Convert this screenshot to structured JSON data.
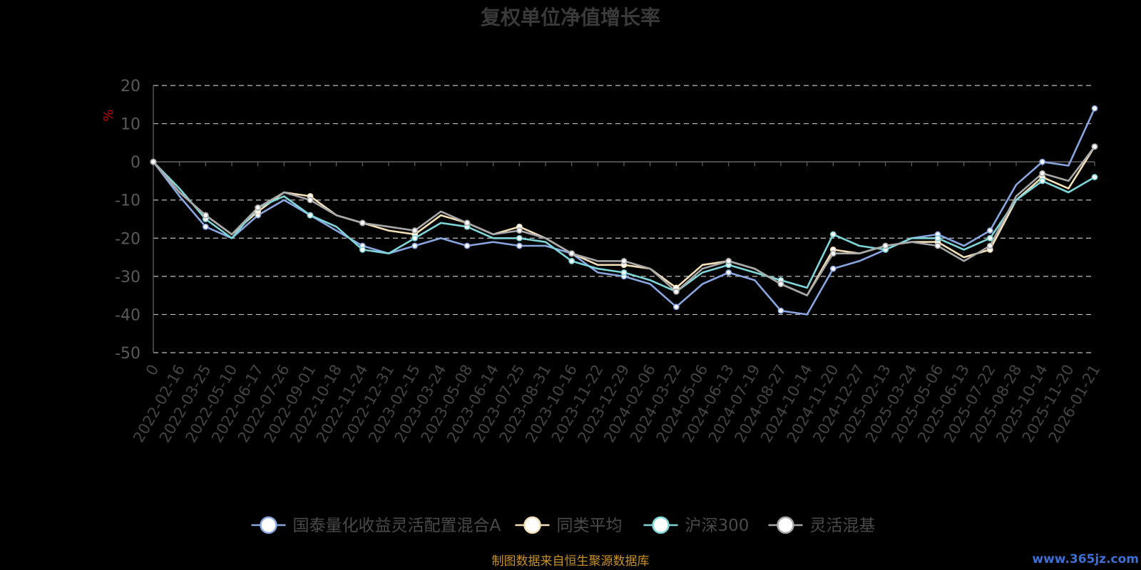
{
  "chart_data": {
    "type": "line",
    "title": "复权单位净值增长率",
    "ylabel": "%",
    "ylim": [
      -50,
      20
    ],
    "yticks": [
      20,
      10,
      0,
      -10,
      -20,
      -30,
      -40,
      -50
    ],
    "grid": true,
    "legend_position": "bottom-center",
    "x_tick_labels": [
      "0",
      "2022-02-16",
      "2022-03-25",
      "2022-05-10",
      "2022-06-17",
      "2022-07-26",
      "2022-09-01",
      "2022-10-18",
      "2022-11-24",
      "2022-12-31",
      "2023-02-15",
      "2023-03-24",
      "2023-05-08",
      "2023-06-14",
      "2023-07-25",
      "2023-08-31",
      "2023-10-16",
      "2023-11-22",
      "2023-12-29",
      "2024-02-06",
      "2024-03-22",
      "2024-05-06",
      "2024-06-13",
      "2024-07-19",
      "2024-08-27",
      "2024-10-14",
      "2024-11-20",
      "2024-12-27",
      "2025-02-13",
      "2025-03-24",
      "2025-05-06",
      "2025-06-13",
      "2025-07-22",
      "2025-08-28",
      "2025-10-14",
      "2025-11-20",
      "2026-01-21"
    ],
    "series": [
      {
        "name": "国泰量化收益灵活配置混合A",
        "color": "#8aa6e0",
        "values": [
          0,
          -9,
          -17,
          -20,
          -14,
          -10,
          -14,
          -18,
          -22,
          -24,
          -22,
          -20,
          -22,
          -21,
          -22,
          -22,
          -24,
          -29,
          -30,
          -32,
          -38,
          -32,
          -29,
          -31,
          -39,
          -40,
          -28,
          -26,
          -23,
          -20,
          -19,
          -22,
          -18,
          -6,
          0,
          -1,
          14
        ]
      },
      {
        "name": "同类平均",
        "color": "#f3dfb8",
        "values": [
          0,
          -8,
          -14,
          -19,
          -13,
          -8,
          -9,
          -14,
          -16,
          -18,
          -19,
          -14,
          -16,
          -19,
          -17,
          -20,
          -24,
          -27,
          -27,
          -28,
          -33,
          -27,
          -26,
          -28,
          -32,
          -35,
          -23,
          -24,
          -22,
          -21,
          -21,
          -25,
          -23,
          -10,
          -4,
          -7,
          4
        ]
      },
      {
        "name": "沪深300",
        "color": "#7fd6d8",
        "values": [
          0,
          -7,
          -15,
          -20,
          -12,
          -9,
          -14,
          -17,
          -23,
          -24,
          -20,
          -16,
          -17,
          -20,
          -20,
          -21,
          -26,
          -28,
          -29,
          -31,
          -34,
          -29,
          -27,
          -29,
          -31,
          -33,
          -19,
          -22,
          -23,
          -20,
          -20,
          -23,
          -20,
          -10,
          -5,
          -8,
          -4
        ]
      },
      {
        "name": "灵活混基",
        "color": "#a8a8a8",
        "values": [
          0,
          -8,
          -14,
          -19,
          -12,
          -8,
          -10,
          -14,
          -16,
          -17,
          -18,
          -13,
          -16,
          -19,
          -18,
          -20,
          -24,
          -26,
          -26,
          -28,
          -34,
          -28,
          -26,
          -28,
          -32,
          -35,
          -24,
          -24,
          -22,
          -21,
          -22,
          -26,
          -22,
          -9,
          -3,
          -5,
          4
        ]
      }
    ]
  },
  "footer": {
    "source": "制图数据来自恒生聚源数据库",
    "watermark": "www.365jz.com"
  }
}
